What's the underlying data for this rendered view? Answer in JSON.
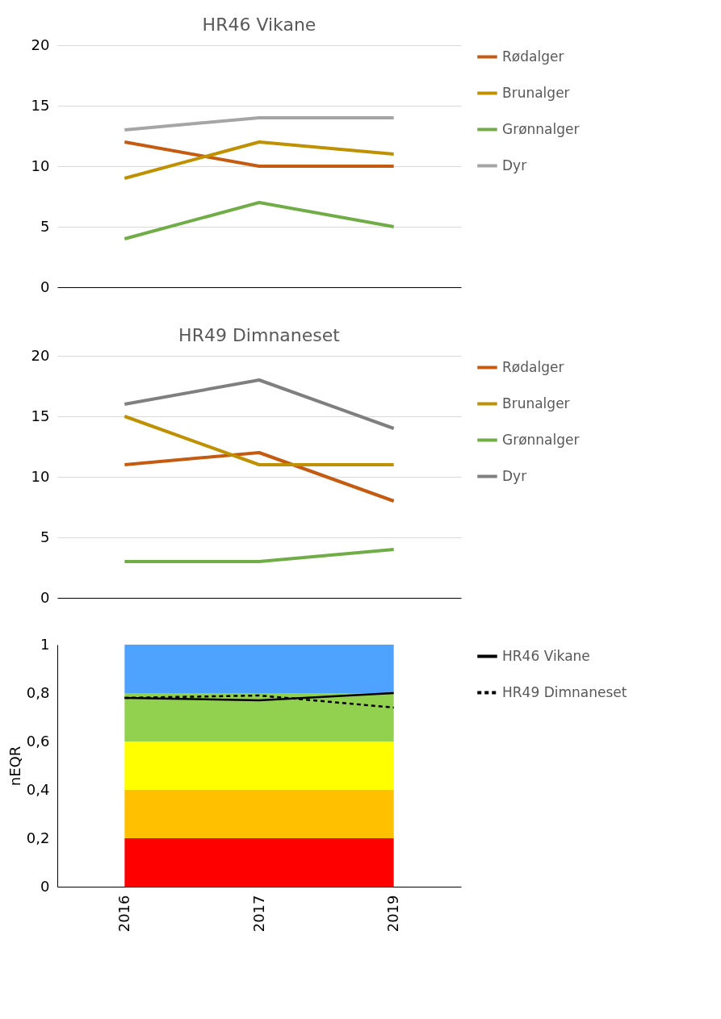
{
  "chart_data": [
    {
      "type": "line",
      "title": "HR46 Vikane",
      "categories": [
        null,
        null,
        null
      ],
      "ylim": [
        0,
        20
      ],
      "yticks": [
        0,
        5,
        10,
        15,
        20
      ],
      "grid": "y",
      "legend": "right",
      "tick_labels": "y",
      "series": [
        {
          "name": "Rødalger",
          "color": "#c55a11",
          "values": [
            12,
            10,
            10
          ]
        },
        {
          "name": "Brunalger",
          "color": "#bf9000",
          "values": [
            9,
            12,
            11
          ]
        },
        {
          "name": "Grønnalger",
          "color": "#70ad47",
          "values": [
            4,
            7,
            5
          ]
        },
        {
          "name": "Dyr",
          "color": "#a5a5a5",
          "values": [
            13,
            14,
            14
          ]
        }
      ]
    },
    {
      "type": "line",
      "title": "HR49 Dimnaneset",
      "categories": [
        null,
        null,
        null
      ],
      "ylim": [
        0,
        20
      ],
      "yticks": [
        0,
        5,
        10,
        15,
        20
      ],
      "grid": "y",
      "legend": "right",
      "tick_labels": "y",
      "series": [
        {
          "name": "Rødalger",
          "color": "#c55a11",
          "values": [
            11,
            12,
            8
          ]
        },
        {
          "name": "Brunalger",
          "color": "#bf9000",
          "values": [
            15,
            11,
            11
          ]
        },
        {
          "name": "Grønnalger",
          "color": "#70ad47",
          "values": [
            3,
            3,
            4
          ]
        },
        {
          "name": "Dyr",
          "color": "#7f7f7f",
          "values": [
            16,
            18,
            14
          ]
        }
      ]
    },
    {
      "type": "line",
      "ylabel": "nEQR",
      "categories": [
        "2016",
        "2017",
        "2019"
      ],
      "ylim": [
        0,
        1
      ],
      "yticks": [
        0,
        {
          "value": 0.2,
          "label": "0,2"
        },
        {
          "value": 0.4,
          "label": "0,4"
        },
        {
          "value": 0.6,
          "label": "0,6"
        },
        {
          "value": 0.8,
          "label": "0,8"
        },
        1
      ],
      "legend": "right",
      "bands": [
        {
          "axis": "y",
          "from": 0,
          "to": 0.2,
          "color": "#ff0000"
        },
        {
          "axis": "y",
          "from": 0.2,
          "to": 0.4,
          "color": "#ffc000"
        },
        {
          "axis": "y",
          "from": 0.4,
          "to": 0.6,
          "color": "#ffff00"
        },
        {
          "axis": "y",
          "from": 0.6,
          "to": 0.8,
          "color": "#92d050"
        },
        {
          "axis": "y",
          "from": 0.8,
          "to": 1,
          "color": "#4da3ff"
        }
      ],
      "series": [
        {
          "name": "HR46 Vikane",
          "color": "#000000",
          "line_style": "solid",
          "values": [
            0.78,
            0.77,
            0.8
          ]
        },
        {
          "name": "HR49 Dimnaneset",
          "color": "#000000",
          "line_style": "dashed",
          "values": [
            0.78,
            0.79,
            0.74
          ]
        }
      ]
    }
  ]
}
